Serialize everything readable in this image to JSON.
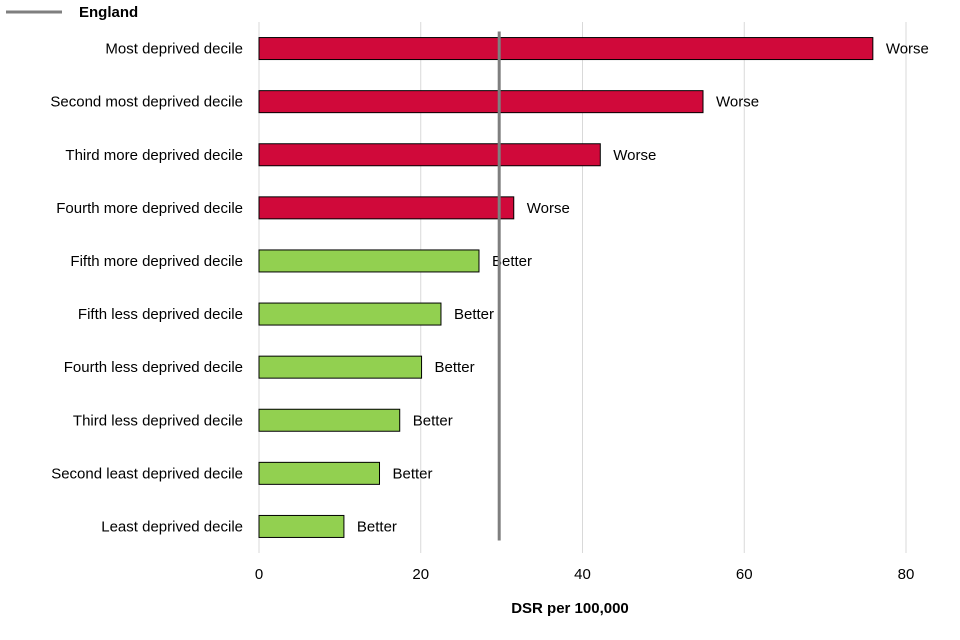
{
  "chart_data": {
    "type": "bar",
    "orientation": "horizontal",
    "categories": [
      "Most deprived decile",
      "Second most deprived decile",
      "Third more deprived decile",
      "Fourth more deprived decile",
      "Fifth more deprived decile",
      "Fifth less deprived decile",
      "Fourth less deprived decile",
      "Third less deprived decile",
      "Second least deprived decile",
      "Least deprived decile"
    ],
    "values": [
      75.9,
      54.9,
      42.2,
      31.5,
      27.2,
      22.5,
      20.1,
      17.4,
      14.9,
      10.5
    ],
    "data_labels": [
      "Worse",
      "Worse",
      "Worse",
      "Worse",
      "Better",
      "Better",
      "Better",
      "Better",
      "Better",
      "Better"
    ],
    "status_colors": {
      "Worse": "#D0093A",
      "Better": "#92D050"
    },
    "reference_line": {
      "name": "England",
      "value": 29.7,
      "color": "#7F7F7F"
    },
    "xlabel": "DSR per 100,000",
    "ylabel": "",
    "title": "",
    "xlim": [
      0,
      80
    ],
    "xticks": [
      0,
      20,
      40,
      60,
      80
    ],
    "grid": "vertical",
    "legend_position": "top-left"
  }
}
